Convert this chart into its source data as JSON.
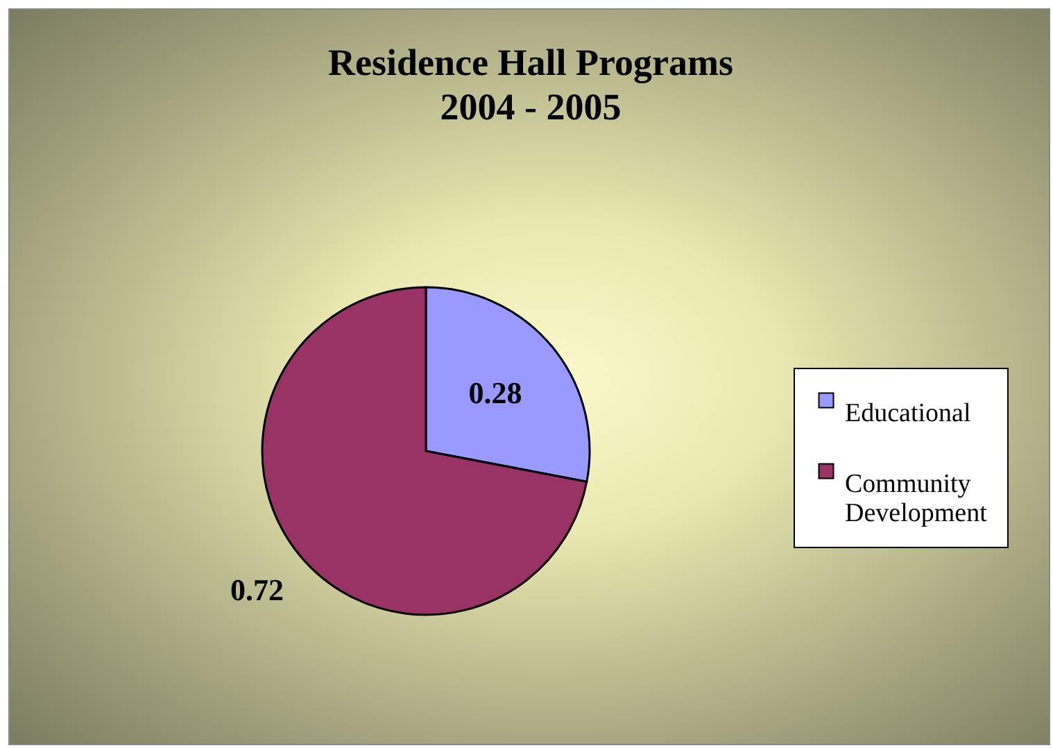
{
  "chart_data": {
    "type": "pie",
    "title": "Residence Hall Programs\n2004 - 2005",
    "categories": [
      "Educational",
      "Community Development"
    ],
    "values": [
      0.28,
      0.72
    ],
    "colors": [
      "#9999ff",
      "#993366"
    ],
    "data_labels": true,
    "legend": "right"
  }
}
